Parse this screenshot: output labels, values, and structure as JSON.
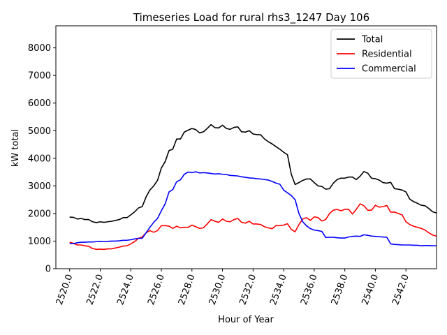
{
  "chart_data": {
    "type": "line",
    "title": "Timeseries Load for rural rhs3_1247  Day 106",
    "xlabel": "Hour of Year",
    "ylabel": "kW total",
    "xlim": [
      2519.1,
      2544.0
    ],
    "ylim": [
      0,
      8800
    ],
    "xticks": [
      2520,
      2522,
      2524,
      2526,
      2528,
      2530,
      2532,
      2534,
      2536,
      2538,
      2540,
      2542
    ],
    "xtick_labels": [
      "2520.0",
      "2522.0",
      "2524.0",
      "2526.0",
      "2528.0",
      "2530.0",
      "2532.0",
      "2534.0",
      "2536.0",
      "2538.0",
      "2540.0",
      "2542.0"
    ],
    "yticks": [
      0,
      1000,
      2000,
      3000,
      4000,
      5000,
      6000,
      7000,
      8000
    ],
    "ytick_labels": [
      "0",
      "1000",
      "2000",
      "3000",
      "4000",
      "5000",
      "6000",
      "7000",
      "8000"
    ],
    "legend_position": "top-right",
    "x_start": 2520.0,
    "x_step": 0.25,
    "series": [
      {
        "name": "Total",
        "color": "#000000",
        "values": [
          1870,
          1860,
          1800,
          1820,
          1780,
          1780,
          1700,
          1670,
          1700,
          1680,
          1700,
          1720,
          1750,
          1780,
          1850,
          1850,
          1950,
          2060,
          2200,
          2250,
          2600,
          2850,
          3000,
          3200,
          3650,
          3880,
          4280,
          4330,
          4700,
          4700,
          4950,
          5020,
          5080,
          5040,
          4920,
          4960,
          5080,
          5220,
          5110,
          5100,
          5200,
          5080,
          5050,
          5120,
          5140,
          4960,
          4950,
          5000,
          4880,
          4860,
          4850,
          4700,
          4600,
          4520,
          4420,
          4330,
          4220,
          4130,
          3420,
          3050,
          3120,
          3200,
          3250,
          3250,
          3120,
          3000,
          2980,
          2880,
          2900,
          3100,
          3230,
          3280,
          3280,
          3320,
          3320,
          3230,
          3350,
          3520,
          3460,
          3280,
          3260,
          3210,
          3120,
          3100,
          3130,
          2900,
          2880,
          2850,
          2780,
          2520,
          2430,
          2370,
          2300,
          2280,
          2180,
          2060,
          2020
        ]
      },
      {
        "name": "Residential",
        "color": "#ff0000",
        "values": [
          960,
          920,
          860,
          860,
          830,
          810,
          730,
          700,
          710,
          700,
          720,
          720,
          750,
          780,
          820,
          830,
          900,
          980,
          1100,
          1150,
          1300,
          1380,
          1320,
          1380,
          1560,
          1560,
          1540,
          1460,
          1540,
          1480,
          1500,
          1500,
          1580,
          1520,
          1460,
          1480,
          1620,
          1780,
          1720,
          1680,
          1800,
          1720,
          1700,
          1780,
          1820,
          1680,
          1650,
          1720,
          1620,
          1620,
          1600,
          1520,
          1480,
          1450,
          1560,
          1560,
          1580,
          1630,
          1420,
          1340,
          1600,
          1800,
          1850,
          1750,
          1880,
          1850,
          1730,
          1780,
          2000,
          2120,
          2150,
          2100,
          2150,
          2150,
          1980,
          2150,
          2350,
          2280,
          2120,
          2120,
          2300,
          2230,
          2250,
          2290,
          2050,
          2050,
          2000,
          1950,
          1700,
          1600,
          1540,
          1500,
          1460,
          1400,
          1300,
          1220,
          1180
        ]
      },
      {
        "name": "Commercial",
        "color": "#0000ff",
        "values": [
          910,
          910,
          940,
          960,
          960,
          970,
          970,
          980,
          990,
          980,
          990,
          1000,
          1000,
          1010,
          1030,
          1030,
          1050,
          1080,
          1100,
          1100,
          1300,
          1500,
          1680,
          1820,
          2100,
          2350,
          2780,
          2870,
          3150,
          3220,
          3420,
          3500,
          3480,
          3510,
          3470,
          3480,
          3470,
          3450,
          3430,
          3440,
          3420,
          3410,
          3380,
          3370,
          3360,
          3330,
          3310,
          3290,
          3280,
          3260,
          3250,
          3230,
          3210,
          3160,
          3100,
          3060,
          2850,
          2750,
          2650,
          2500,
          2000,
          1700,
          1550,
          1450,
          1400,
          1380,
          1350,
          1130,
          1140,
          1140,
          1120,
          1110,
          1110,
          1150,
          1170,
          1180,
          1170,
          1230,
          1210,
          1180,
          1170,
          1160,
          1150,
          1140,
          900,
          880,
          870,
          860,
          860,
          860,
          850,
          850,
          830,
          840,
          840,
          830,
          830
        ]
      }
    ]
  }
}
